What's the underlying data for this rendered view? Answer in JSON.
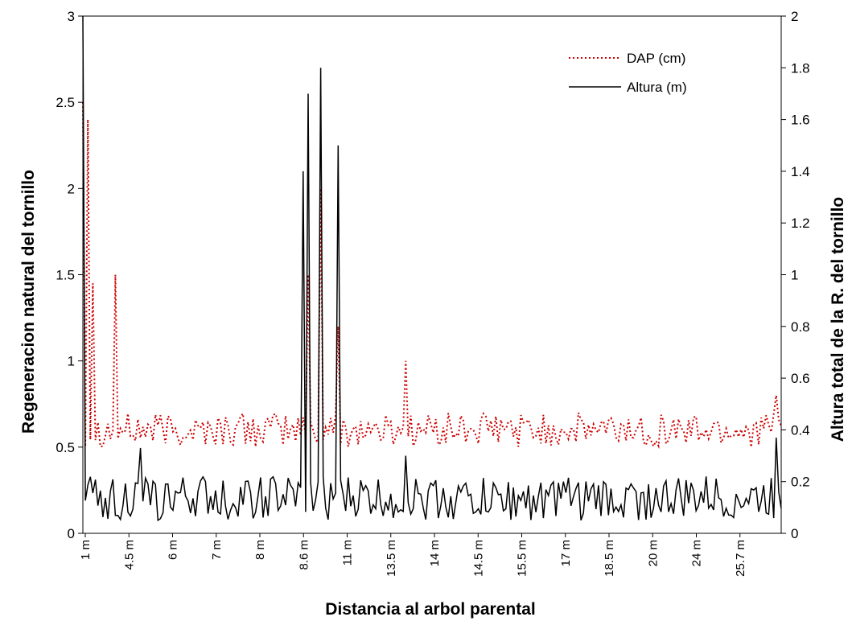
{
  "chart_data": {
    "type": "line",
    "title": "",
    "xlabel": "Distancia al arbol parental",
    "ylabel_left": "Regeneracion natural del tornillo",
    "ylabel_right": "Altura total de la R. del tornillo",
    "ylim_left": [
      0,
      3
    ],
    "ylim_right": [
      0,
      2
    ],
    "yticks_left": [
      "0",
      "0.5",
      "1",
      "1.5",
      "2",
      "2.5",
      "3"
    ],
    "yticks_right": [
      "0",
      "0.2",
      "0.4",
      "0.6",
      "0.8",
      "1",
      "1.2",
      "1.4",
      "1.6",
      "1.8",
      "2"
    ],
    "xtick_labels": [
      "1 m",
      "4.5 m",
      "6 m",
      "7 m",
      "8 m",
      "8.6 m",
      "11 m",
      "13.5 m",
      "14 m",
      "14.5 m",
      "15.5 m",
      "17 m",
      "18.5 m",
      "20 m",
      "24 m",
      "25.7 m"
    ],
    "n_points": 280,
    "legend_position": "top-right",
    "series": [
      {
        "name": "DAP (cm)",
        "axis": "left",
        "color": "#cc0000",
        "style": "dotted",
        "peaks": [
          {
            "index": 0,
            "value": 2.5
          },
          {
            "index": 2,
            "value": 2.4
          },
          {
            "index": 4,
            "value": 1.45
          },
          {
            "index": 13,
            "value": 1.5
          },
          {
            "index": 90,
            "value": 1.5
          },
          {
            "index": 95,
            "value": 2.0
          },
          {
            "index": 102,
            "value": 1.2
          },
          {
            "index": 129,
            "value": 1.0
          },
          {
            "index": 277,
            "value": 0.8
          }
        ],
        "baseline_min": 0.5,
        "baseline_max": 0.7
      },
      {
        "name": "Altura (m)",
        "axis": "right",
        "color": "#000000",
        "style": "solid",
        "peaks": [
          {
            "index": 0,
            "value": 2.0
          },
          {
            "index": 88,
            "value": 1.4
          },
          {
            "index": 90,
            "value": 1.7
          },
          {
            "index": 95,
            "value": 1.8
          },
          {
            "index": 102,
            "value": 1.5
          },
          {
            "index": 129,
            "value": 0.3
          },
          {
            "index": 23,
            "value": 0.33
          },
          {
            "index": 277,
            "value": 0.37
          }
        ],
        "baseline_min": 0.05,
        "baseline_max": 0.22
      }
    ]
  }
}
